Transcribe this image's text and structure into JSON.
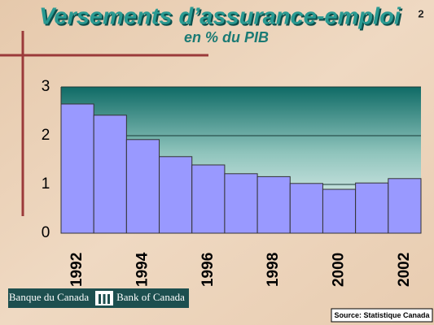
{
  "chart_data": {
    "type": "bar",
    "title": "Versements d’assurance-emploi",
    "subtitle": "en % du PIB",
    "page_number": "2",
    "categories": [
      "1992",
      null,
      "1994",
      null,
      "1996",
      null,
      "1998",
      null,
      "2000",
      null,
      "2002"
    ],
    "values": [
      2.65,
      2.42,
      1.92,
      1.57,
      1.4,
      1.22,
      1.16,
      1.02,
      0.9,
      1.03,
      1.12
    ],
    "color": "#9999ff",
    "ylim": [
      0,
      3
    ],
    "yticks": [
      0,
      1,
      2,
      3
    ],
    "grid": true,
    "logo": {
      "fr": "Banque du Canada",
      "en": "Bank of Canada"
    },
    "source": "Source: Statistique Canada"
  }
}
